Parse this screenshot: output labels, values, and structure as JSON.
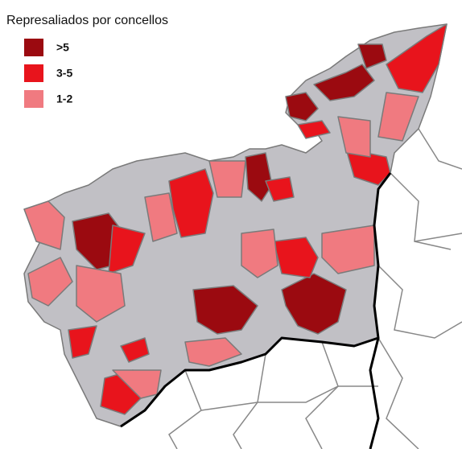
{
  "title": "Represaliados por concellos",
  "legend": [
    {
      "label": ">5",
      "color": "#9b0a10"
    },
    {
      "label": "3-5",
      "color": "#e8141c"
    },
    {
      "label": "1-2",
      "color": "#f07a80"
    }
  ]
}
